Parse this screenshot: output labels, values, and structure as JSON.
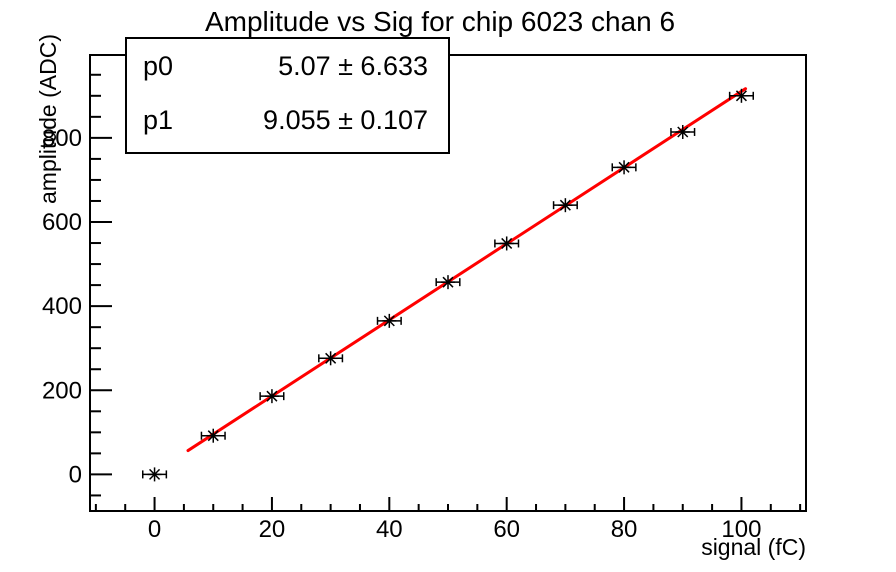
{
  "chart_data": {
    "type": "scatter",
    "title": "Amplitude vs Sig for chip 6023 chan 6",
    "xlabel": "signal (fC)",
    "ylabel": "amplitude (ADC)",
    "x": [
      0,
      10,
      20,
      30,
      40,
      50,
      60,
      70,
      80,
      90,
      100
    ],
    "y": [
      0,
      92,
      186,
      276,
      365,
      457,
      549,
      640,
      730,
      814,
      900
    ],
    "x_error": 1.5,
    "xlim": [
      -11,
      111
    ],
    "ylim": [
      -87,
      997
    ],
    "x_ticks": {
      "major": [
        0,
        20,
        40,
        60,
        80,
        100
      ],
      "minor_step": 5
    },
    "y_ticks": {
      "major": [
        0,
        200,
        400,
        600,
        800
      ],
      "minor_step": 50
    },
    "grid": false,
    "legend_position": "none",
    "fit": {
      "p0": 5.07,
      "p0_err": 6.633,
      "p1": 9.055,
      "p1_err": 0.107,
      "x_start": 5.7,
      "x_end": 100.7,
      "color": "#ff0000"
    },
    "marker": {
      "style": "asterisk",
      "color": "#000000"
    },
    "stats": {
      "rows": [
        {
          "label": "p0",
          "value": "5.07 ± 6.633"
        },
        {
          "label": "p1",
          "value": "9.055 ± 0.107"
        }
      ]
    }
  }
}
